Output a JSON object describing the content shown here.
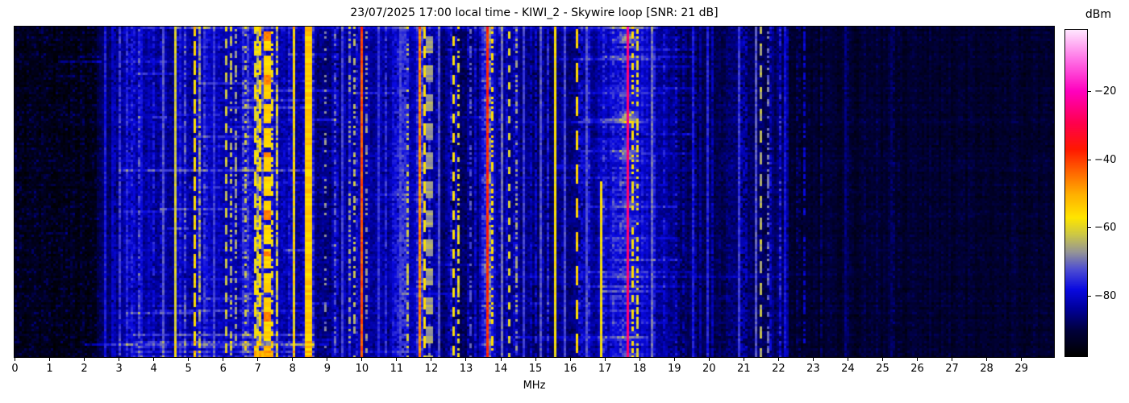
{
  "header": {
    "title": "23/07/2025 17:00 local time - KIWI_2 - Skywire loop [SNR: 21 dB]",
    "date": "23/07/2025",
    "time": "17:00 local time",
    "receiver": "KIWI_2",
    "antenna": "Skywire loop",
    "snr": "21 dB"
  },
  "chart_data": {
    "type": "heatmap",
    "subtype": "radio-spectrum-waterfall",
    "title": "23/07/2025 17:00 local time - KIWI_2 - Skywire loop [SNR: 21 dB]",
    "xlabel": "MHz",
    "x_max": 29.95,
    "x_ticks": [
      0,
      1,
      2,
      3,
      4,
      5,
      6,
      7,
      8,
      9,
      10,
      11,
      12,
      13,
      14,
      15,
      16,
      17,
      18,
      19,
      20,
      21,
      22,
      23,
      24,
      25,
      26,
      27,
      28,
      29
    ],
    "colorbar": {
      "label": "dBm",
      "ticks": [
        -20,
        -40,
        -60,
        -80
      ],
      "tick_labels": [
        "−20",
        "−40",
        "−60",
        "−80"
      ],
      "vmin": -97.5,
      "vmax": -2,
      "colormap_stops": [
        [
          0.0,
          0,
          0,
          0
        ],
        [
          0.078,
          0,
          0,
          60
        ],
        [
          0.141,
          0,
          0,
          150
        ],
        [
          0.204,
          10,
          10,
          225
        ],
        [
          0.267,
          80,
          80,
          210
        ],
        [
          0.319,
          150,
          150,
          150
        ],
        [
          0.372,
          205,
          200,
          70
        ],
        [
          0.424,
          255,
          230,
          0
        ],
        [
          0.497,
          255,
          175,
          0
        ],
        [
          0.571,
          255,
          95,
          0
        ],
        [
          0.634,
          255,
          25,
          0
        ],
        [
          0.717,
          255,
          0,
          80
        ],
        [
          0.812,
          255,
          0,
          190
        ],
        [
          0.906,
          255,
          110,
          230
        ],
        [
          1.0,
          255,
          230,
          255
        ]
      ]
    },
    "noise_profile": [
      [
        0.0,
        2.4,
        -95,
        2.2,
        true
      ],
      [
        2.4,
        3.0,
        -88,
        3,
        false
      ],
      [
        3.0,
        4.1,
        -82.5,
        4,
        false
      ],
      [
        4.1,
        5.4,
        -83.5,
        4,
        false
      ],
      [
        5.4,
        6.6,
        -82,
        4.5,
        false
      ],
      [
        6.6,
        7.6,
        -80,
        5,
        false
      ],
      [
        7.6,
        8.6,
        -82,
        4.5,
        false
      ],
      [
        8.6,
        9.5,
        -85,
        4,
        false
      ],
      [
        9.5,
        10.4,
        -83,
        4,
        false
      ],
      [
        10.4,
        11.5,
        -83.5,
        4,
        false
      ],
      [
        11.5,
        12.3,
        -84,
        4,
        false
      ],
      [
        12.3,
        13.4,
        -87,
        4,
        false
      ],
      [
        13.4,
        14.6,
        -84,
        4,
        false
      ],
      [
        14.6,
        16.6,
        -86,
        4,
        false
      ],
      [
        16.6,
        19.0,
        -84.5,
        4,
        false
      ],
      [
        19.0,
        20.5,
        -88,
        3.5,
        false
      ],
      [
        20.5,
        22.3,
        -87,
        4,
        false
      ],
      [
        22.3,
        29.95,
        -91.5,
        3,
        false
      ]
    ],
    "signals": [
      {
        "f": 2.55,
        "w": 0.05,
        "level": -77,
        "style": "solid"
      },
      {
        "f": 3.33,
        "w": 0.04,
        "level": -79,
        "style": "dotted",
        "duty": 0.5
      },
      {
        "f": 3.62,
        "w": 0.04,
        "level": -78,
        "style": "solid"
      },
      {
        "f": 4.27,
        "w": 0.05,
        "level": -72,
        "style": "solid"
      },
      {
        "f": 4.62,
        "w": 0.05,
        "level": -61,
        "style": "solid"
      },
      {
        "f": 4.88,
        "w": 0.04,
        "level": -70,
        "style": "dotted",
        "duty": 0.4
      },
      {
        "f": 5.18,
        "w": 0.08,
        "level": -56,
        "style": "dashed",
        "duty": 0.7,
        "dash": 8
      },
      {
        "f": 5.33,
        "w": 0.04,
        "level": -68,
        "style": "dotted",
        "duty": 0.45
      },
      {
        "f": 5.75,
        "w": 0.04,
        "level": -74,
        "style": "solid"
      },
      {
        "f": 6.07,
        "w": 0.05,
        "level": -62,
        "style": "dashed",
        "duty": 0.55,
        "dash": 7
      },
      {
        "f": 6.2,
        "w": 0.05,
        "level": -64,
        "style": "dotted",
        "duty": 0.5
      },
      {
        "f": 6.33,
        "w": 0.04,
        "level": -66,
        "style": "dotted",
        "duty": 0.5
      },
      {
        "f": 6.63,
        "w": 0.05,
        "level": -63,
        "style": "dotted",
        "duty": 0.45
      },
      {
        "f": 6.92,
        "w": 0.09,
        "level": -58,
        "style": "dashed",
        "duty": 0.65,
        "dash": 9
      },
      {
        "f": 7.05,
        "w": 0.1,
        "level": -56,
        "style": "dashed",
        "duty": 0.75,
        "dash": 8
      },
      {
        "f": 7.22,
        "w": 0.12,
        "level": -55,
        "style": "dashed",
        "duty": 0.8,
        "dash": 10,
        "hotspots": true
      },
      {
        "f": 7.38,
        "w": 0.06,
        "level": -58,
        "style": "dotted",
        "duty": 0.55
      },
      {
        "f": 7.5,
        "w": 0.05,
        "level": -60,
        "style": "dotted",
        "duty": 0.5
      },
      {
        "f": 8.05,
        "w": 0.07,
        "level": -57,
        "style": "solid",
        "jitter": 5
      },
      {
        "f": 8.42,
        "w": 0.12,
        "level": -54,
        "style": "solid",
        "jitter": 3
      },
      {
        "f": 8.95,
        "w": 0.04,
        "level": -68,
        "style": "dotted",
        "duty": 0.3
      },
      {
        "f": 9.4,
        "w": 0.04,
        "level": -74,
        "style": "solid"
      },
      {
        "f": 9.65,
        "w": 0.05,
        "level": -66,
        "style": "dotted",
        "duty": 0.4
      },
      {
        "f": 9.78,
        "w": 0.05,
        "level": -64,
        "style": "dotted",
        "duty": 0.4
      },
      {
        "f": 10.0,
        "w": 0.045,
        "level": -42,
        "style": "solid",
        "jitter": 3
      },
      {
        "f": 10.12,
        "w": 0.05,
        "level": -67,
        "style": "dotted",
        "duty": 0.4
      },
      {
        "f": 10.45,
        "w": 0.04,
        "level": -75,
        "style": "solid"
      },
      {
        "f": 11.1,
        "w": 0.04,
        "level": -73,
        "style": "solid"
      },
      {
        "f": 11.32,
        "w": 0.05,
        "level": -63,
        "style": "dotted",
        "duty": 0.35
      },
      {
        "f": 11.62,
        "w": 0.06,
        "level": -46,
        "style": "solid",
        "jitter": 4,
        "halo": {
          "sigma": 0.08,
          "gain": 10
        }
      },
      {
        "f": 11.76,
        "w": 0.07,
        "level": -57,
        "style": "dashed",
        "duty": 0.6,
        "dash": 8
      },
      {
        "f": 11.95,
        "w": 0.15,
        "level": -66,
        "style": "dashed",
        "duty": 0.55,
        "dash": 12
      },
      {
        "f": 12.2,
        "w": 0.04,
        "level": -72,
        "style": "solid"
      },
      {
        "f": 12.6,
        "w": 0.05,
        "level": -57,
        "style": "dashed",
        "duty": 0.55,
        "dash": 8
      },
      {
        "f": 12.74,
        "w": 0.05,
        "level": -60,
        "style": "dotted",
        "duty": 0.5
      },
      {
        "f": 13.12,
        "w": 0.04,
        "level": -72,
        "style": "dotted",
        "duty": 0.5
      },
      {
        "f": 13.57,
        "w": 0.09,
        "level": -38,
        "style": "solid",
        "jitter": 3,
        "halo": {
          "sigma": 0.12,
          "gain": 12
        }
      },
      {
        "f": 13.7,
        "w": 0.05,
        "level": -56,
        "style": "dotted",
        "duty": 0.5
      },
      {
        "f": 14.0,
        "w": 0.04,
        "level": -70,
        "style": "solid"
      },
      {
        "f": 14.22,
        "w": 0.06,
        "level": -60,
        "style": "dashed",
        "duty": 0.45,
        "dash": 7
      },
      {
        "f": 14.4,
        "w": 0.05,
        "level": -66,
        "style": "dotted",
        "duty": 0.4
      },
      {
        "f": 14.65,
        "w": 0.04,
        "level": -74,
        "style": "solid"
      },
      {
        "f": 15.1,
        "w": 0.04,
        "level": -72,
        "style": "solid"
      },
      {
        "f": 15.57,
        "w": 0.06,
        "level": -57,
        "style": "solid",
        "jitter": 3
      },
      {
        "f": 15.8,
        "w": 0.04,
        "level": -73,
        "style": "solid"
      },
      {
        "f": 16.17,
        "w": 0.08,
        "level": -55,
        "style": "dashed",
        "duty": 0.55,
        "dash": 14
      },
      {
        "f": 16.45,
        "w": 0.04,
        "level": -73,
        "style": "solid"
      },
      {
        "f": 16.9,
        "w": 0.045,
        "level": -60,
        "style": "solid",
        "start": 0.47
      },
      {
        "f": 17.62,
        "w": 0.05,
        "level": -26,
        "style": "solid",
        "jitter": 2,
        "halo": {
          "sigma": 0.55,
          "gain": 7
        },
        "flare": {
          "sigma": 0.16,
          "gain": 26
        }
      },
      {
        "f": 17.8,
        "w": 0.05,
        "level": -57,
        "style": "dotted",
        "duty": 0.5
      },
      {
        "f": 17.92,
        "w": 0.05,
        "level": -60,
        "style": "dotted",
        "duty": 0.45
      },
      {
        "f": 18.3,
        "w": 0.04,
        "level": -70,
        "style": "solid"
      },
      {
        "f": 19.5,
        "w": 0.04,
        "level": -77,
        "style": "solid"
      },
      {
        "f": 19.95,
        "w": 0.04,
        "level": -76,
        "style": "solid"
      },
      {
        "f": 20.85,
        "w": 0.04,
        "level": -74,
        "style": "solid"
      },
      {
        "f": 21.3,
        "w": 0.04,
        "level": -72,
        "style": "solid"
      },
      {
        "f": 21.46,
        "w": 0.06,
        "level": -64,
        "style": "dashed",
        "duty": 0.5,
        "dash": 9
      },
      {
        "f": 21.7,
        "w": 0.05,
        "level": -70,
        "style": "dotted",
        "duty": 0.5
      },
      {
        "f": 22.2,
        "w": 0.04,
        "level": -78,
        "style": "solid"
      },
      {
        "f": 22.7,
        "w": 0.04,
        "level": -80,
        "style": "dotted",
        "duty": 0.5
      },
      {
        "f": 23.9,
        "w": 0.04,
        "level": -86,
        "style": "solid"
      },
      {
        "f": 25.2,
        "w": 0.04,
        "level": -88,
        "style": "solid"
      }
    ],
    "streaks": [
      {
        "y_frac": 0.1,
        "f0": 1.25,
        "f1": 2.45,
        "gain": 9
      },
      {
        "y_frac": 0.105,
        "f0": 3.1,
        "f1": 4.6,
        "gain": 5
      },
      {
        "y_frac": 0.22,
        "f0": 6.6,
        "f1": 8.6,
        "gain": 6
      },
      {
        "y_frac": 0.3,
        "f0": 4.4,
        "f1": 7.6,
        "gain": 5
      },
      {
        "y_frac": 0.435,
        "f0": 3.0,
        "f1": 8.5,
        "gain": 7
      },
      {
        "y_frac": 0.55,
        "f0": 4.2,
        "f1": 6.6,
        "gain": 8
      },
      {
        "y_frac": 0.64,
        "f0": 16.8,
        "f1": 19.0,
        "gain": 5
      },
      {
        "y_frac": 0.76,
        "f0": 14.0,
        "f1": 22.0,
        "gain": 4
      },
      {
        "y_frac": 0.8,
        "f0": 16.9,
        "f1": 18.6,
        "gain": 6
      },
      {
        "y_frac": 0.935,
        "f0": 3.4,
        "f1": 8.6,
        "gain": 8
      },
      {
        "y_frac": 0.965,
        "f0": 2.0,
        "f1": 8.6,
        "gain": 10
      }
    ],
    "texture": {
      "random_streaks": [
        {
          "count": 40,
          "f_min": 2.8,
          "f_max": 9.2,
          "len_min": 0.4,
          "len_max": 2.5,
          "gain_min": 3,
          "gain_max": 7
        },
        {
          "count": 22,
          "f_min": 13.8,
          "f_max": 19.5,
          "len_min": 0.8,
          "len_max": 4,
          "gain_min": 3,
          "gain_max": 6
        },
        {
          "count": 10,
          "f_min": 9.5,
          "f_max": 13.5,
          "len_min": 0.5,
          "len_max": 2,
          "gain_min": 3,
          "gain_max": 5
        },
        {
          "count": 6,
          "f_min": 0.8,
          "f_max": 2.4,
          "len_min": 0.4,
          "len_max": 1.2,
          "gain_min": 4,
          "gain_max": 7
        }
      ],
      "minor_lines": [
        {
          "count": 45,
          "f_min": 2.7,
          "f_max": 9.4,
          "boost_min": 3,
          "boost_max": 8
        },
        {
          "count": 40,
          "f_min": 9.5,
          "f_max": 16.6,
          "boost_min": 3,
          "boost_max": 8
        },
        {
          "count": 25,
          "f_min": 16.6,
          "f_max": 22.3,
          "boost_min": 3,
          "boost_max": 7
        },
        {
          "count": 8,
          "f_min": 22.3,
          "f_max": 26.0,
          "boost_min": 2,
          "boost_max": 5
        }
      ]
    }
  }
}
